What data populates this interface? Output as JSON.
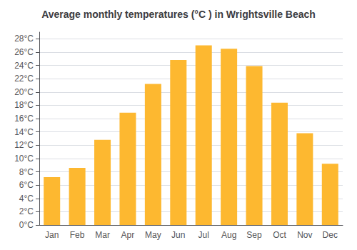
{
  "chart_data": {
    "type": "bar",
    "title": "Average monthly temperatures (°C ) in Wrightsville Beach",
    "categories": [
      "Jan",
      "Feb",
      "Mar",
      "Apr",
      "May",
      "Jun",
      "Jul",
      "Aug",
      "Sep",
      "Oct",
      "Nov",
      "Dec"
    ],
    "values": [
      7.2,
      8.6,
      12.8,
      16.9,
      21.2,
      24.8,
      27.0,
      26.5,
      23.9,
      18.4,
      13.8,
      9.2
    ],
    "color": "#FDB830",
    "ylim": [
      0,
      29
    ],
    "yticks": [
      {
        "value": 0,
        "label": "0°C"
      },
      {
        "value": 2,
        "label": "2°C"
      },
      {
        "value": 4,
        "label": "4°C"
      },
      {
        "value": 6,
        "label": "6°C"
      },
      {
        "value": 8,
        "label": "8°C"
      },
      {
        "value": 10,
        "label": "10°C"
      },
      {
        "value": 12,
        "label": "12°C"
      },
      {
        "value": 14,
        "label": "14°C"
      },
      {
        "value": 16,
        "label": "16°C"
      },
      {
        "value": 18,
        "label": "18°C"
      },
      {
        "value": 20,
        "label": "20°C"
      },
      {
        "value": 22,
        "label": "22°C"
      },
      {
        "value": 24,
        "label": "24°C"
      },
      {
        "value": 26,
        "label": "26°C"
      },
      {
        "value": 28,
        "label": "28°C"
      }
    ],
    "grid": true
  }
}
